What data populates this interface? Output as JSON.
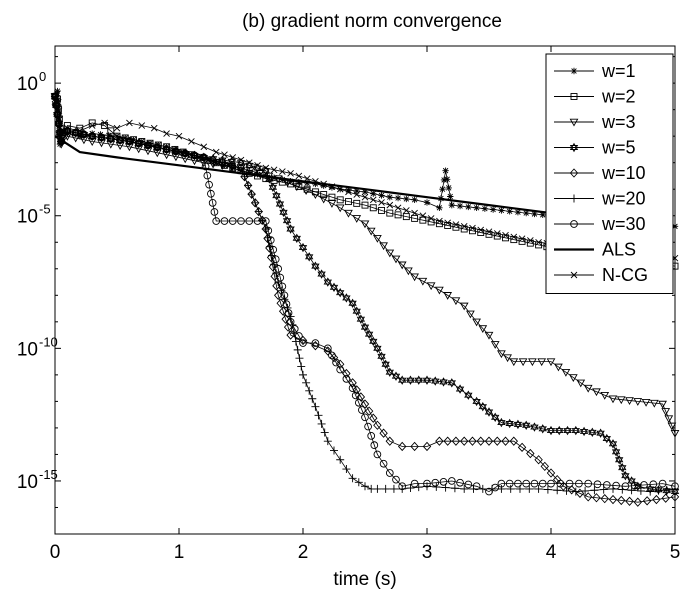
{
  "chart_data": {
    "type": "line",
    "title": "(b) gradient norm convergence",
    "xlabel": "time (s)",
    "ylabel": "",
    "xlim": [
      0,
      5
    ],
    "ylim_log10": [
      -17,
      1.4
    ],
    "yscale": "log",
    "grid": false,
    "legend_position": "top-right",
    "x_ticks": [
      "0",
      "1",
      "2",
      "3",
      "4",
      "5"
    ],
    "y_ticks": [
      {
        "base": "10",
        "exp": "0",
        "value": 0
      },
      {
        "base": "10",
        "exp": "-5",
        "value": -5
      },
      {
        "base": "10",
        "exp": "-10",
        "value": -10
      },
      {
        "base": "10",
        "exp": "-15",
        "value": -15
      }
    ],
    "series": [
      {
        "name": "w=1",
        "marker": "star",
        "line": "thin",
        "x": [
          0,
          0.02,
          0.04,
          0.1,
          0.2,
          0.3,
          0.5,
          0.7,
          0.9,
          1.1,
          1.3,
          1.5,
          1.7,
          1.9,
          2.1,
          2.3,
          2.5,
          2.7,
          2.9,
          3.0,
          3.1,
          3.15,
          3.2,
          3.4,
          3.6,
          3.8,
          4.0,
          4.2,
          4.4,
          4.6,
          4.8,
          5.0
        ],
        "log10_y": [
          -0.8,
          -0.3,
          -2.3,
          -1.9,
          -2.0,
          -1.9,
          -2.0,
          -2.2,
          -2.4,
          -2.7,
          -3.0,
          -3.3,
          -3.5,
          -3.7,
          -3.8,
          -4.0,
          -4.1,
          -4.3,
          -4.4,
          -4.5,
          -4.7,
          -3.3,
          -4.6,
          -4.7,
          -4.8,
          -4.9,
          -5.0,
          -5.0,
          -5.1,
          -5.2,
          -5.3,
          -5.4
        ]
      },
      {
        "name": "w=2",
        "marker": "square",
        "line": "thin",
        "x": [
          0,
          0.02,
          0.05,
          0.1,
          0.2,
          0.3,
          0.4,
          0.5,
          0.7,
          0.9,
          1.1,
          1.3,
          1.5,
          1.7,
          1.9,
          2.1,
          2.3,
          2.5,
          2.7,
          2.9,
          3.1,
          3.3,
          3.5,
          3.7,
          3.9,
          4.1,
          4.3,
          4.5,
          4.7,
          5.0
        ],
        "log10_y": [
          -0.5,
          -0.6,
          -2.1,
          -1.6,
          -1.7,
          -1.5,
          -1.6,
          -2.0,
          -2.2,
          -2.4,
          -2.7,
          -3.0,
          -3.3,
          -3.6,
          -3.8,
          -4.1,
          -4.4,
          -4.6,
          -4.9,
          -5.1,
          -5.3,
          -5.5,
          -5.7,
          -5.9,
          -6.1,
          -6.3,
          -6.4,
          -6.5,
          -6.7,
          -6.9
        ]
      },
      {
        "name": "w=3",
        "marker": "triangle-down",
        "line": "thin",
        "x": [
          0,
          0.05,
          0.1,
          0.3,
          0.6,
          0.9,
          1.2,
          1.5,
          1.8,
          2.1,
          2.3,
          2.5,
          2.7,
          2.9,
          3.1,
          3.3,
          3.4,
          3.5,
          3.6,
          3.7,
          4.0,
          4.3,
          4.5,
          4.7,
          4.9,
          5.0
        ],
        "log10_y": [
          -0.5,
          -2.3,
          -2.0,
          -2.2,
          -2.4,
          -2.7,
          -3.0,
          -3.2,
          -3.6,
          -4.2,
          -4.7,
          -5.3,
          -6.4,
          -7.3,
          -7.8,
          -8.4,
          -9.0,
          -9.5,
          -10.2,
          -10.5,
          -10.5,
          -11.5,
          -11.9,
          -12.0,
          -12.1,
          -13.2
        ]
      },
      {
        "name": "w=5",
        "marker": "hexagram",
        "line": "thin",
        "x": [
          0,
          0.05,
          0.1,
          0.3,
          0.6,
          0.9,
          1.2,
          1.5,
          1.7,
          1.9,
          2.0,
          2.1,
          2.2,
          2.3,
          2.4,
          2.5,
          2.6,
          2.7,
          2.8,
          3.0,
          3.2,
          3.4,
          3.6,
          3.8,
          4.0,
          4.2,
          4.4,
          4.5,
          4.6,
          4.7,
          4.8,
          5.0
        ],
        "log10_y": [
          -0.5,
          -2.2,
          -1.8,
          -2.0,
          -2.2,
          -2.5,
          -2.8,
          -3.0,
          -3.3,
          -5.5,
          -6.2,
          -6.9,
          -7.5,
          -7.9,
          -8.3,
          -9.2,
          -10.0,
          -10.9,
          -11.2,
          -11.2,
          -11.3,
          -12.0,
          -12.8,
          -12.9,
          -13.1,
          -13.1,
          -13.2,
          -13.6,
          -14.8,
          -15.2,
          -15.3,
          -15.4
        ]
      },
      {
        "name": "w=10",
        "marker": "diamond",
        "line": "thin",
        "x": [
          0,
          0.05,
          0.1,
          0.3,
          0.6,
          0.9,
          1.2,
          1.5,
          1.7,
          1.8,
          1.9,
          2.0,
          2.1,
          2.2,
          2.3,
          2.4,
          2.5,
          2.6,
          2.7,
          2.8,
          2.9,
          3.0,
          3.1,
          3.3,
          3.5,
          3.7,
          3.9,
          4.1,
          4.3,
          4.5,
          4.7,
          5.0
        ],
        "log10_y": [
          -0.5,
          -2.2,
          -1.8,
          -2.0,
          -2.2,
          -2.5,
          -2.8,
          -3.2,
          -5.5,
          -8.0,
          -9.5,
          -9.7,
          -9.9,
          -10.1,
          -10.6,
          -11.3,
          -12.1,
          -12.9,
          -13.5,
          -13.7,
          -13.7,
          -13.7,
          -13.5,
          -13.5,
          -13.5,
          -13.5,
          -14.2,
          -15.2,
          -15.6,
          -15.7,
          -15.8,
          -15.6
        ]
      },
      {
        "name": "w=20",
        "marker": "plus",
        "line": "thin",
        "x": [
          0,
          0.05,
          0.1,
          0.3,
          0.6,
          0.9,
          1.2,
          1.5,
          1.7,
          1.8,
          1.9,
          2.0,
          2.1,
          2.2,
          2.3,
          2.4,
          2.5,
          2.55,
          2.6,
          2.8,
          3.0,
          3.3,
          3.6,
          3.9,
          4.2,
          4.5,
          4.8,
          5.0
        ],
        "log10_y": [
          -0.5,
          -2.2,
          -1.8,
          -2.0,
          -2.2,
          -2.5,
          -2.8,
          -3.2,
          -5.5,
          -7.5,
          -8.8,
          -11.0,
          -12.2,
          -13.5,
          -14.2,
          -14.9,
          -15.2,
          -15.3,
          -15.3,
          -15.3,
          -15.2,
          -15.3,
          -15.3,
          -15.3,
          -15.4,
          -15.3,
          -15.4,
          -15.3
        ]
      },
      {
        "name": "w=30",
        "marker": "circle",
        "line": "thin",
        "x": [
          0,
          0.05,
          0.1,
          0.3,
          0.6,
          0.9,
          1.2,
          1.3,
          1.5,
          1.7,
          1.8,
          1.9,
          2.0,
          2.1,
          2.2,
          2.3,
          2.4,
          2.5,
          2.6,
          2.7,
          2.8,
          2.9,
          3.0,
          3.2,
          3.4,
          3.5,
          3.6,
          3.8,
          4.0,
          4.3,
          4.6,
          4.9,
          5.0
        ],
        "log10_y": [
          -0.5,
          -2.2,
          -1.8,
          -2.0,
          -2.2,
          -2.5,
          -2.8,
          -5.2,
          -5.2,
          -5.2,
          -7.0,
          -9.0,
          -9.8,
          -9.8,
          -10.0,
          -10.8,
          -11.5,
          -12.6,
          -14.0,
          -14.7,
          -15.2,
          -15.1,
          -15.1,
          -15.0,
          -15.2,
          -15.4,
          -15.1,
          -15.1,
          -15.1,
          -15.1,
          -15.2,
          -15.1,
          -15.2
        ]
      },
      {
        "name": "ALS",
        "marker": "none",
        "line": "thick",
        "x": [
          0,
          0.1,
          0.2,
          0.5,
          1.0,
          1.5,
          2.0,
          2.5,
          3.0,
          3.5,
          4.0,
          4.5,
          5.0
        ],
        "log10_y": [
          -2.0,
          -2.3,
          -2.6,
          -2.8,
          -3.1,
          -3.4,
          -3.7,
          -4.0,
          -4.3,
          -4.6,
          -4.9,
          -5.2,
          -5.4
        ]
      },
      {
        "name": "N-CG",
        "marker": "x",
        "line": "thin",
        "x": [
          0,
          0.02,
          0.05,
          0.1,
          0.2,
          0.3,
          0.4,
          0.5,
          0.6,
          0.7,
          0.8,
          0.9,
          1.0,
          1.1,
          1.2,
          1.3,
          1.5,
          1.7,
          1.9,
          2.1,
          2.3,
          2.5,
          2.7,
          2.9,
          3.1,
          3.3,
          3.5,
          3.7,
          3.9,
          4.1,
          4.3,
          4.5,
          4.7,
          5.0
        ],
        "log10_y": [
          -0.6,
          -0.4,
          -2.0,
          -1.7,
          -1.8,
          -1.6,
          -1.5,
          -1.7,
          -1.5,
          -1.6,
          -1.7,
          -1.9,
          -2.0,
          -2.2,
          -2.4,
          -2.6,
          -2.9,
          -3.2,
          -3.4,
          -3.7,
          -4.0,
          -4.3,
          -4.6,
          -4.9,
          -5.2,
          -5.4,
          -5.6,
          -5.8,
          -6.0,
          -6.1,
          -6.2,
          -6.4,
          -6.5,
          -6.6
        ]
      }
    ]
  }
}
